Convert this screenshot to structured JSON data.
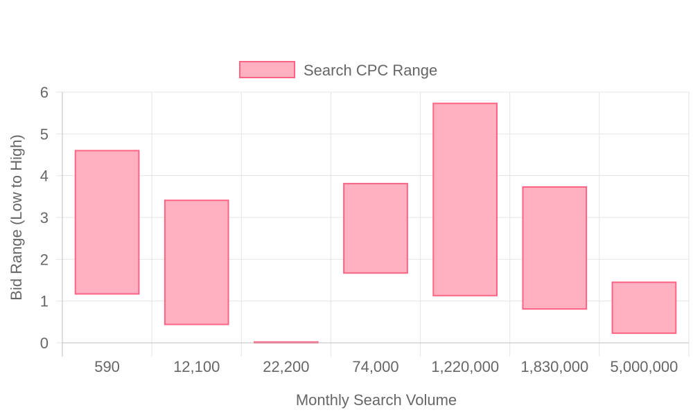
{
  "chart_data": {
    "type": "bar",
    "subtype": "floating-range",
    "title": "",
    "xlabel": "Monthly Search Volume",
    "ylabel": "Bid Range (Low to High)",
    "categories": [
      "590",
      "12,100",
      "22,200",
      "74,000",
      "1,220,000",
      "1,830,000",
      "5,000,000"
    ],
    "series": [
      {
        "name": "Search CPC Range",
        "ranges": [
          [
            1.17,
            4.6
          ],
          [
            0.44,
            3.41
          ],
          [
            0.0,
            0.02
          ],
          [
            1.67,
            3.81
          ],
          [
            1.13,
            5.73
          ],
          [
            0.81,
            3.73
          ],
          [
            0.23,
            1.45
          ]
        ],
        "fill": "#ffb1c1",
        "stroke": "#ff6384"
      }
    ],
    "y_ticks": [
      "0",
      "1",
      "2",
      "3",
      "4",
      "5",
      "6"
    ],
    "ylim": [
      0,
      6
    ],
    "grid": true,
    "legend": "top-center"
  },
  "colors": {
    "grid": "#e5e5e5",
    "axis": "#bdbdbd",
    "text": "#666666"
  }
}
